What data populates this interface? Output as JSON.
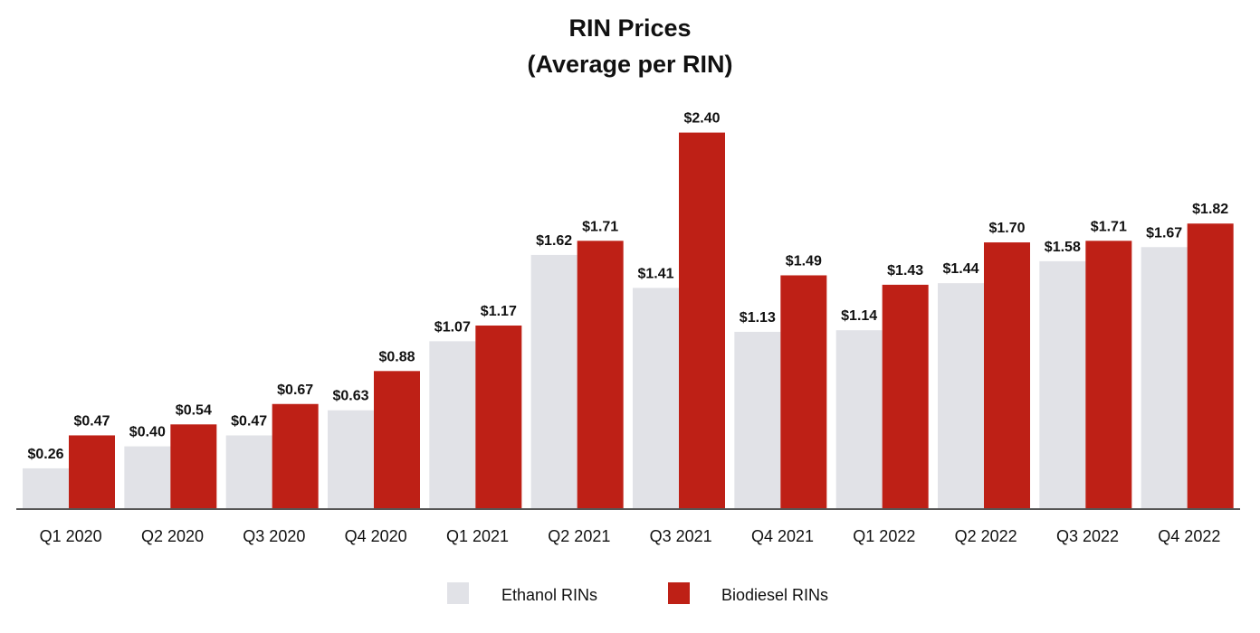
{
  "chart_data": {
    "type": "bar",
    "title": "RIN Prices",
    "subtitle": "(Average per RIN)",
    "categories": [
      "Q1 2020",
      "Q2 2020",
      "Q3 2020",
      "Q4 2020",
      "Q1 2021",
      "Q2 2021",
      "Q3 2021",
      "Q4 2021",
      "Q1 2022",
      "Q2 2022",
      "Q3 2022",
      "Q4 2022"
    ],
    "series": [
      {
        "name": "Ethanol RINs",
        "color": "#e1e2e7",
        "values": [
          0.26,
          0.4,
          0.47,
          0.63,
          1.07,
          1.62,
          1.41,
          1.13,
          1.14,
          1.44,
          1.58,
          1.67
        ],
        "labels": [
          "$0.26",
          "$0.40",
          "$0.47",
          "$0.63",
          "$1.07",
          "$1.62",
          "$1.41",
          "$1.13",
          "$1.14",
          "$1.44",
          "$1.58",
          "$1.67"
        ]
      },
      {
        "name": "Biodiesel RINs",
        "color": "#be2016",
        "values": [
          0.47,
          0.54,
          0.67,
          0.88,
          1.17,
          1.71,
          2.4,
          1.49,
          1.43,
          1.7,
          1.71,
          1.82
        ],
        "labels": [
          "$0.47",
          "$0.54",
          "$0.67",
          "$0.88",
          "$1.17",
          "$1.71",
          "$2.40",
          "$1.49",
          "$1.43",
          "$1.70",
          "$1.71",
          "$1.82"
        ]
      }
    ],
    "ylim": [
      0,
      2.5
    ],
    "grid": false,
    "legend_position": "bottom-center",
    "axis_color": "#555555"
  }
}
